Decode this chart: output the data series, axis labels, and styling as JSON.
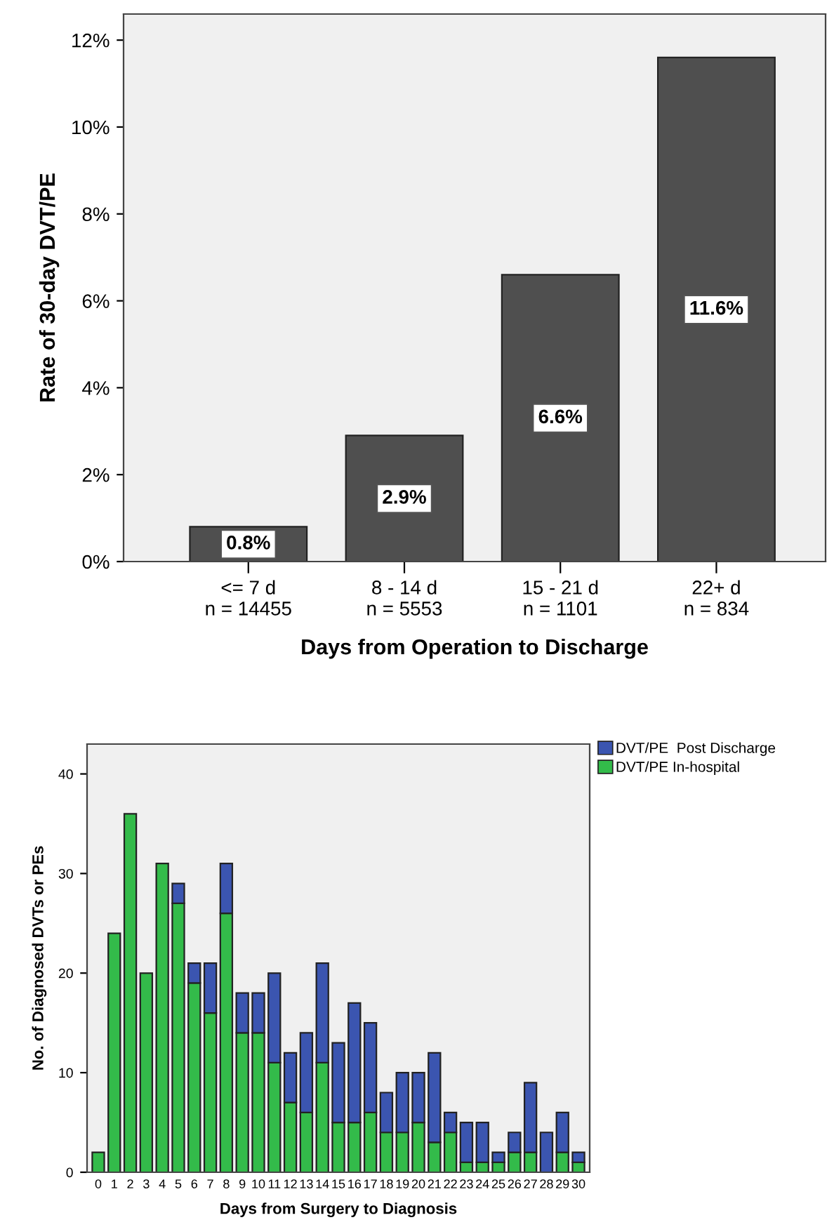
{
  "chart_data": [
    {
      "type": "bar",
      "xlabel": "Days from Operation to Discharge",
      "ylabel": "Rate of 30-day DVT/PE",
      "categories": [
        "<= 7 d\nn = 14455",
        "8 - 14 d\nn = 5553",
        "15 - 21 d\nn = 1101",
        "22+ d\nn = 834"
      ],
      "values": [
        0.8,
        2.9,
        6.6,
        11.6
      ],
      "color": "#4f4f4f",
      "value_labels": [
        "0.8%",
        "2.9%",
        "6.6%",
        "11.6%"
      ],
      "ylim": [
        0,
        12.6
      ],
      "yticks": [
        {
          "value": 0,
          "label": "0%"
        },
        {
          "value": 2,
          "label": "2%"
        },
        {
          "value": 4,
          "label": "4%"
        },
        {
          "value": 6,
          "label": "6%"
        },
        {
          "value": 8,
          "label": "8%"
        },
        {
          "value": 10,
          "label": "10%"
        },
        {
          "value": 12,
          "label": "12%"
        }
      ],
      "grid": false,
      "legend": false
    },
    {
      "type": "bar",
      "stacked": true,
      "xlabel": "Days from Surgery to Diagnosis",
      "ylabel": "No. of Diagnosed DVTs or PEs",
      "categories": [
        "0",
        "1",
        "2",
        "3",
        "4",
        "5",
        "6",
        "7",
        "8",
        "9",
        "10",
        "11",
        "12",
        "13",
        "14",
        "15",
        "16",
        "17",
        "18",
        "19",
        "20",
        "21",
        "22",
        "23",
        "24",
        "25",
        "26",
        "27",
        "28",
        "29",
        "30"
      ],
      "series": [
        {
          "name": "DVT/PE In-hospital",
          "color": "#33bb4a",
          "values": [
            2,
            24,
            36,
            20,
            31,
            27,
            19,
            16,
            26,
            14,
            14,
            11,
            7,
            6,
            11,
            5,
            5,
            6,
            4,
            4,
            5,
            3,
            4,
            1,
            1,
            1,
            2,
            2,
            0,
            2,
            1
          ]
        },
        {
          "name": "DVT/PE  Post Discharge",
          "color": "#3b55b0",
          "values": [
            null,
            null,
            null,
            null,
            null,
            2,
            2,
            5,
            5,
            4,
            4,
            9,
            5,
            8,
            10,
            8,
            12,
            9,
            4,
            6,
            5,
            9,
            2,
            4,
            4,
            1,
            2,
            7,
            4,
            4,
            1
          ]
        }
      ],
      "ylim": [
        0,
        43
      ],
      "yticks": [
        0,
        10,
        20,
        30,
        40
      ],
      "grid": false,
      "legend": "right"
    }
  ]
}
